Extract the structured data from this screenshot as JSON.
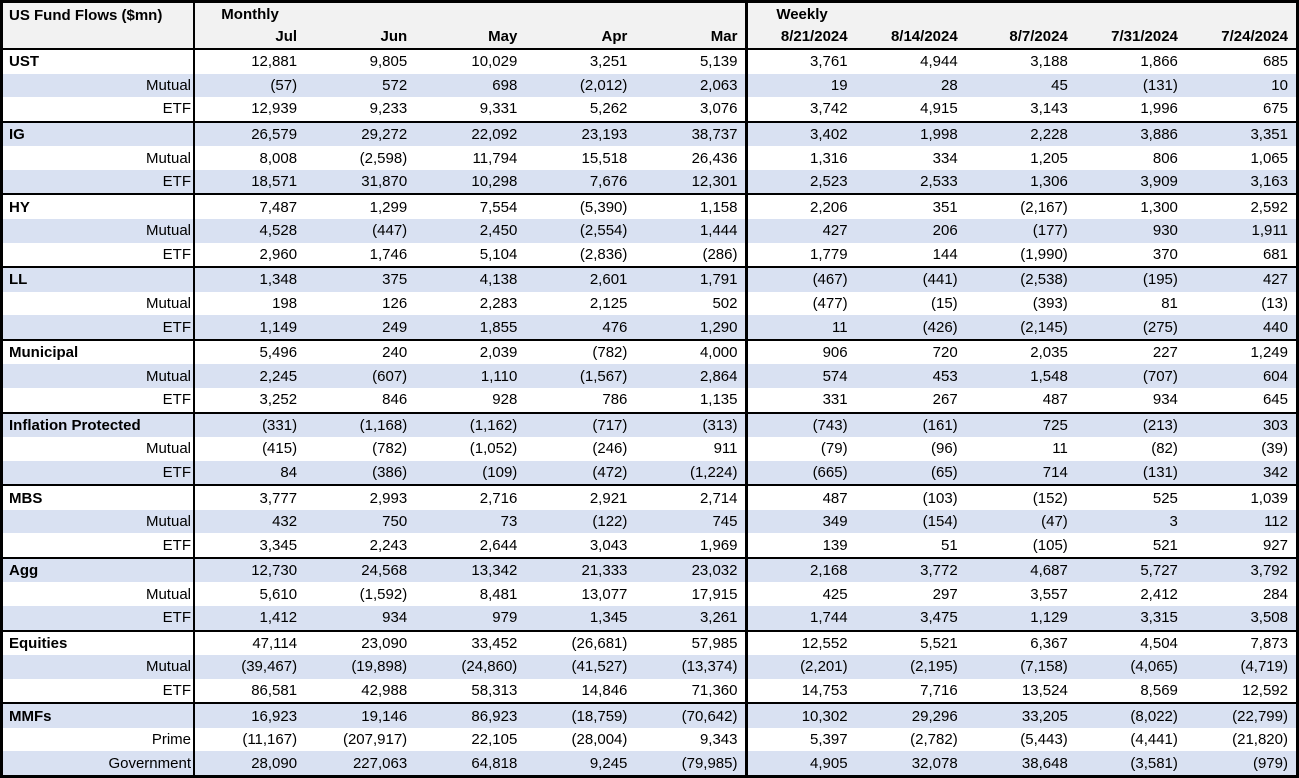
{
  "title": "US Fund Flows ($mn)",
  "sections": {
    "monthly": {
      "label": "Monthly",
      "columns": [
        "Jul",
        "Jun",
        "May",
        "Apr",
        "Mar"
      ]
    },
    "weekly": {
      "label": "Weekly",
      "columns": [
        "8/21/2024",
        "8/14/2024",
        "8/7/2024",
        "7/31/2024",
        "7/24/2024"
      ]
    }
  },
  "groups": [
    {
      "name": "UST",
      "rows": [
        {
          "label": "UST",
          "type": "category",
          "monthly": [
            "12,881",
            "9,805",
            "10,029",
            "3,251",
            "5,139"
          ],
          "weekly": [
            "3,761",
            "4,944",
            "3,188",
            "1,866",
            "685"
          ]
        },
        {
          "label": "Mutual",
          "type": "sub",
          "monthly": [
            "(57)",
            "572",
            "698",
            "(2,012)",
            "2,063"
          ],
          "weekly": [
            "19",
            "28",
            "45",
            "(131)",
            "10"
          ]
        },
        {
          "label": "ETF",
          "type": "sub",
          "monthly": [
            "12,939",
            "9,233",
            "9,331",
            "5,262",
            "3,076"
          ],
          "weekly": [
            "3,742",
            "4,915",
            "3,143",
            "1,996",
            "675"
          ]
        }
      ]
    },
    {
      "name": "IG",
      "rows": [
        {
          "label": "IG",
          "type": "category",
          "monthly": [
            "26,579",
            "29,272",
            "22,092",
            "23,193",
            "38,737"
          ],
          "weekly": [
            "3,402",
            "1,998",
            "2,228",
            "3,886",
            "3,351"
          ]
        },
        {
          "label": "Mutual",
          "type": "sub",
          "monthly": [
            "8,008",
            "(2,598)",
            "11,794",
            "15,518",
            "26,436"
          ],
          "weekly": [
            "1,316",
            "334",
            "1,205",
            "806",
            "1,065"
          ]
        },
        {
          "label": "ETF",
          "type": "sub",
          "monthly": [
            "18,571",
            "31,870",
            "10,298",
            "7,676",
            "12,301"
          ],
          "weekly": [
            "2,523",
            "2,533",
            "1,306",
            "3,909",
            "3,163"
          ]
        }
      ]
    },
    {
      "name": "HY",
      "rows": [
        {
          "label": "HY",
          "type": "category",
          "monthly": [
            "7,487",
            "1,299",
            "7,554",
            "(5,390)",
            "1,158"
          ],
          "weekly": [
            "2,206",
            "351",
            "(2,167)",
            "1,300",
            "2,592"
          ]
        },
        {
          "label": "Mutual",
          "type": "sub",
          "monthly": [
            "4,528",
            "(447)",
            "2,450",
            "(2,554)",
            "1,444"
          ],
          "weekly": [
            "427",
            "206",
            "(177)",
            "930",
            "1,911"
          ]
        },
        {
          "label": "ETF",
          "type": "sub",
          "monthly": [
            "2,960",
            "1,746",
            "5,104",
            "(2,836)",
            "(286)"
          ],
          "weekly": [
            "1,779",
            "144",
            "(1,990)",
            "370",
            "681"
          ]
        }
      ]
    },
    {
      "name": "LL",
      "rows": [
        {
          "label": "LL",
          "type": "category",
          "monthly": [
            "1,348",
            "375",
            "4,138",
            "2,601",
            "1,791"
          ],
          "weekly": [
            "(467)",
            "(441)",
            "(2,538)",
            "(195)",
            "427"
          ]
        },
        {
          "label": "Mutual",
          "type": "sub",
          "monthly": [
            "198",
            "126",
            "2,283",
            "2,125",
            "502"
          ],
          "weekly": [
            "(477)",
            "(15)",
            "(393)",
            "81",
            "(13)"
          ]
        },
        {
          "label": "ETF",
          "type": "sub",
          "monthly": [
            "1,149",
            "249",
            "1,855",
            "476",
            "1,290"
          ],
          "weekly": [
            "11",
            "(426)",
            "(2,145)",
            "(275)",
            "440"
          ]
        }
      ]
    },
    {
      "name": "Municipal",
      "rows": [
        {
          "label": "Municipal",
          "type": "category",
          "monthly": [
            "5,496",
            "240",
            "2,039",
            "(782)",
            "4,000"
          ],
          "weekly": [
            "906",
            "720",
            "2,035",
            "227",
            "1,249"
          ]
        },
        {
          "label": "Mutual",
          "type": "sub",
          "monthly": [
            "2,245",
            "(607)",
            "1,110",
            "(1,567)",
            "2,864"
          ],
          "weekly": [
            "574",
            "453",
            "1,548",
            "(707)",
            "604"
          ]
        },
        {
          "label": "ETF",
          "type": "sub",
          "monthly": [
            "3,252",
            "846",
            "928",
            "786",
            "1,135"
          ],
          "weekly": [
            "331",
            "267",
            "487",
            "934",
            "645"
          ]
        }
      ]
    },
    {
      "name": "Inflation Protected",
      "rows": [
        {
          "label": "Inflation Protected",
          "type": "category",
          "monthly": [
            "(331)",
            "(1,168)",
            "(1,162)",
            "(717)",
            "(313)"
          ],
          "weekly": [
            "(743)",
            "(161)",
            "725",
            "(213)",
            "303"
          ]
        },
        {
          "label": "Mutual",
          "type": "sub",
          "monthly": [
            "(415)",
            "(782)",
            "(1,052)",
            "(246)",
            "911"
          ],
          "weekly": [
            "(79)",
            "(96)",
            "11",
            "(82)",
            "(39)"
          ]
        },
        {
          "label": "ETF",
          "type": "sub",
          "monthly": [
            "84",
            "(386)",
            "(109)",
            "(472)",
            "(1,224)"
          ],
          "weekly": [
            "(665)",
            "(65)",
            "714",
            "(131)",
            "342"
          ]
        }
      ]
    },
    {
      "name": "MBS",
      "rows": [
        {
          "label": "MBS",
          "type": "category",
          "monthly": [
            "3,777",
            "2,993",
            "2,716",
            "2,921",
            "2,714"
          ],
          "weekly": [
            "487",
            "(103)",
            "(152)",
            "525",
            "1,039"
          ]
        },
        {
          "label": "Mutual",
          "type": "sub",
          "monthly": [
            "432",
            "750",
            "73",
            "(122)",
            "745"
          ],
          "weekly": [
            "349",
            "(154)",
            "(47)",
            "3",
            "112"
          ]
        },
        {
          "label": "ETF",
          "type": "sub",
          "monthly": [
            "3,345",
            "2,243",
            "2,644",
            "3,043",
            "1,969"
          ],
          "weekly": [
            "139",
            "51",
            "(105)",
            "521",
            "927"
          ]
        }
      ]
    },
    {
      "name": "Agg",
      "rows": [
        {
          "label": "Agg",
          "type": "category",
          "monthly": [
            "12,730",
            "24,568",
            "13,342",
            "21,333",
            "23,032"
          ],
          "weekly": [
            "2,168",
            "3,772",
            "4,687",
            "5,727",
            "3,792"
          ]
        },
        {
          "label": "Mutual",
          "type": "sub",
          "monthly": [
            "5,610",
            "(1,592)",
            "8,481",
            "13,077",
            "17,915"
          ],
          "weekly": [
            "425",
            "297",
            "3,557",
            "2,412",
            "284"
          ]
        },
        {
          "label": "ETF",
          "type": "sub",
          "monthly": [
            "1,412",
            "934",
            "979",
            "1,345",
            "3,261"
          ],
          "weekly": [
            "1,744",
            "3,475",
            "1,129",
            "3,315",
            "3,508"
          ]
        }
      ]
    },
    {
      "name": "Equities",
      "rows": [
        {
          "label": "Equities",
          "type": "category",
          "monthly": [
            "47,114",
            "23,090",
            "33,452",
            "(26,681)",
            "57,985"
          ],
          "weekly": [
            "12,552",
            "5,521",
            "6,367",
            "4,504",
            "7,873"
          ]
        },
        {
          "label": "Mutual",
          "type": "sub",
          "monthly": [
            "(39,467)",
            "(19,898)",
            "(24,860)",
            "(41,527)",
            "(13,374)"
          ],
          "weekly": [
            "(2,201)",
            "(2,195)",
            "(7,158)",
            "(4,065)",
            "(4,719)"
          ]
        },
        {
          "label": "ETF",
          "type": "sub",
          "monthly": [
            "86,581",
            "42,988",
            "58,313",
            "14,846",
            "71,360"
          ],
          "weekly": [
            "14,753",
            "7,716",
            "13,524",
            "8,569",
            "12,592"
          ]
        }
      ]
    },
    {
      "name": "MMFs",
      "rows": [
        {
          "label": "MMFs",
          "type": "category",
          "monthly": [
            "16,923",
            "19,146",
            "86,923",
            "(18,759)",
            "(70,642)"
          ],
          "weekly": [
            "10,302",
            "29,296",
            "33,205",
            "(8,022)",
            "(22,799)"
          ]
        },
        {
          "label": "Prime",
          "type": "sub",
          "monthly": [
            "(11,167)",
            "(207,917)",
            "22,105",
            "(28,004)",
            "9,343"
          ],
          "weekly": [
            "5,397",
            "(2,782)",
            "(5,443)",
            "(4,441)",
            "(21,820)"
          ]
        },
        {
          "label": "Government",
          "type": "sub",
          "monthly": [
            "28,090",
            "227,063",
            "64,818",
            "9,245",
            "(79,985)"
          ],
          "weekly": [
            "4,905",
            "32,078",
            "38,648",
            "(3,581)",
            "(979)"
          ]
        }
      ]
    }
  ],
  "colors": {
    "alt_row_bg": "#D9E1F2",
    "header_bg": "#F2F2F2",
    "border": "#000000",
    "text": "#000000"
  }
}
